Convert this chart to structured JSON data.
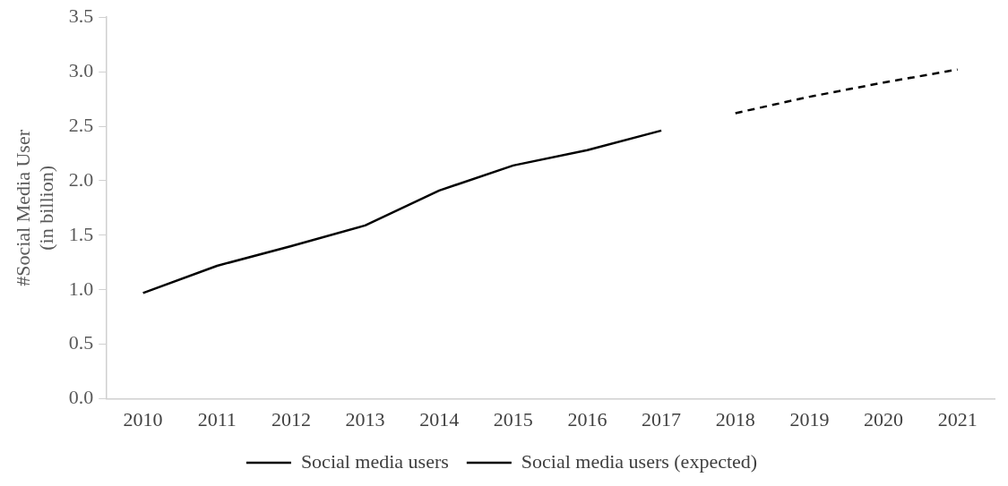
{
  "chart_data": {
    "type": "line",
    "ylabel": "#Social Media User\n(in billion)",
    "categories": [
      "2010",
      "2011",
      "2012",
      "2013",
      "2014",
      "2015",
      "2016",
      "2017",
      "2018",
      "2019",
      "2020",
      "2021"
    ],
    "series": [
      {
        "name": "Social media users",
        "color": "#000000",
        "line_style": "solid",
        "values": [
          0.97,
          1.22,
          1.4,
          1.59,
          1.91,
          2.14,
          2.28,
          2.46,
          null,
          null,
          null,
          null
        ]
      },
      {
        "name": "Social media users (expected)",
        "color": "#000000",
        "line_style": "dashed",
        "values": [
          null,
          null,
          null,
          null,
          null,
          null,
          null,
          null,
          2.62,
          2.77,
          2.9,
          3.02
        ]
      }
    ],
    "ylim": [
      0,
      3.5
    ],
    "yticks": [
      {
        "value": 0,
        "label": "0.0"
      },
      {
        "value": 0.5,
        "label": "0.5"
      },
      {
        "value": 1,
        "label": "1.0"
      },
      {
        "value": 1.5,
        "label": "1.5"
      },
      {
        "value": 2,
        "label": "2.0"
      },
      {
        "value": 2.5,
        "label": "2.5"
      },
      {
        "value": 3,
        "label": "3.0"
      },
      {
        "value": 3.5,
        "label": "3.5"
      }
    ],
    "grid": false,
    "legend": "bottom",
    "marker": "none"
  }
}
